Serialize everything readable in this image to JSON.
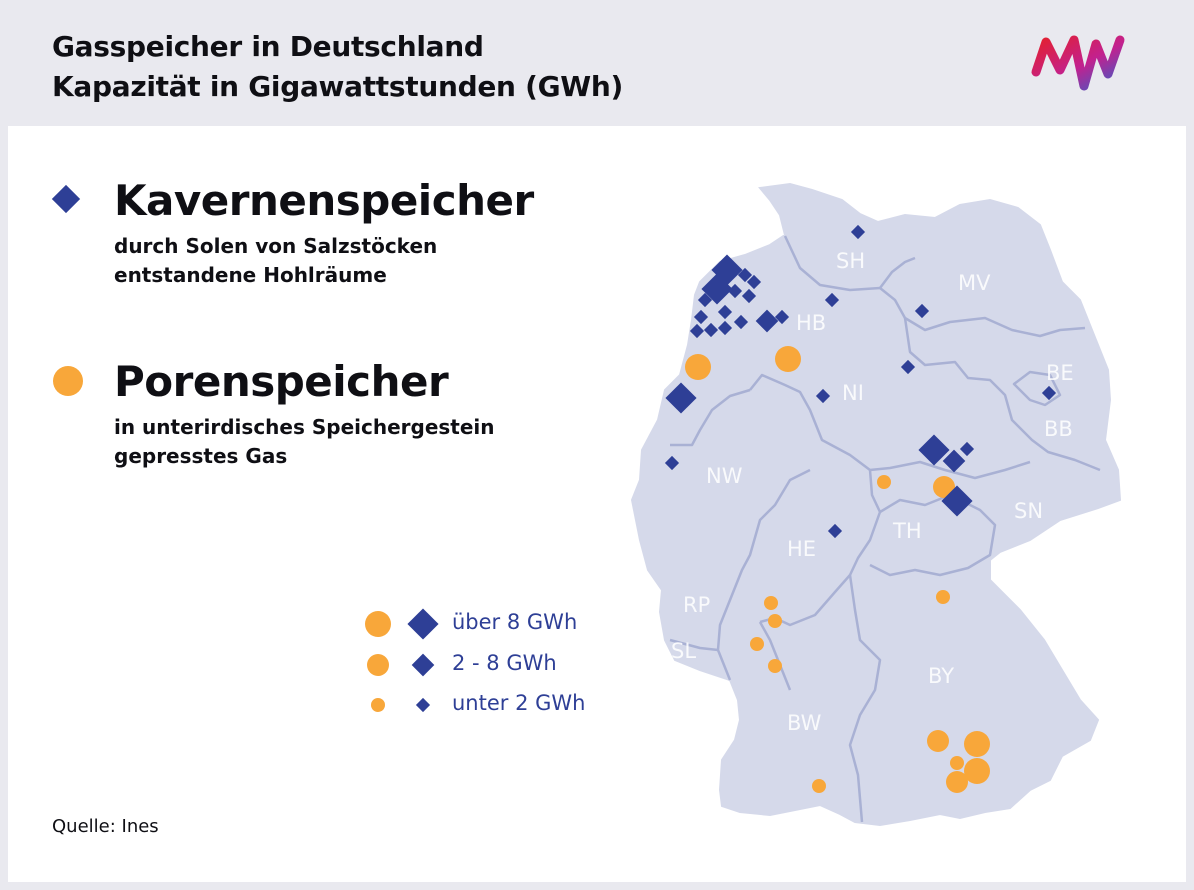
{
  "header": {
    "title_line1": "Gasspeicher in Deutschland",
    "title_line2": "Kapazität in Gigawattstunden (GWh)",
    "logo": "MW-logo"
  },
  "types": {
    "cavern": {
      "title": "Kavernenspeicher",
      "desc_line1": "durch Solen von Salzstöcken",
      "desc_line2": "entstandene Hohlräume",
      "color": "#2e3f96",
      "shape": "diamond"
    },
    "pore": {
      "title": "Porenspeicher",
      "desc_line1": "in unterirdisches Speichergestein",
      "desc_line2": "gepresstes Gas",
      "color": "#f8a73a",
      "shape": "circle"
    }
  },
  "legend": [
    {
      "label": "über 8 GWh",
      "size": "large"
    },
    {
      "label": "2 - 8 GWh",
      "size": "medium"
    },
    {
      "label": "unter 2 GWh",
      "size": "small"
    }
  ],
  "regions": [
    "SH",
    "MV",
    "HB",
    "NI",
    "BE",
    "BB",
    "NW",
    "SN",
    "TH",
    "HE",
    "RP",
    "SL",
    "BY",
    "BW"
  ],
  "storage_sites": {
    "cavern_count_visible": 27,
    "pore_count_visible": 17
  },
  "source": "Quelle: Ines",
  "colors": {
    "background": "#e9e9ef",
    "panel": "#ffffff",
    "map": "#d5d9ea",
    "borders": "#a9b1d4",
    "cavern": "#2e3f96",
    "pore": "#f8a73a"
  }
}
